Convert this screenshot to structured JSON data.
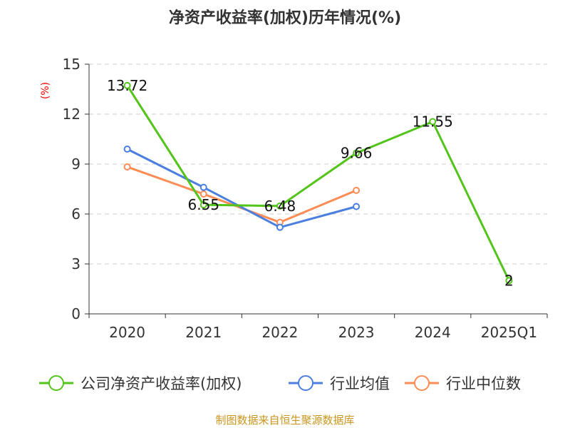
{
  "chart_data": {
    "type": "line",
    "title": "净资产收益率(加权)历年情况(%)",
    "ylabel": "(%)",
    "xlabel": "",
    "categories": [
      "2020",
      "2021",
      "2022",
      "2023",
      "2024",
      "2025Q1"
    ],
    "ylim": [
      0,
      15
    ],
    "yticks": [
      0,
      3,
      6,
      9,
      12,
      15
    ],
    "grid": true,
    "legend_position": "bottom",
    "series": [
      {
        "name": "公司净资产收益率(加权)",
        "color": "#52c41a",
        "values": [
          13.72,
          6.55,
          6.48,
          9.66,
          11.55,
          2
        ],
        "labels": [
          "13.72",
          "6.55",
          "6.48",
          "9.66",
          "11.55",
          "2"
        ]
      },
      {
        "name": "行业均值",
        "color": "#4a7fe0",
        "values": [
          9.9,
          7.6,
          5.2,
          6.45,
          null,
          null
        ]
      },
      {
        "name": "行业中位数",
        "color": "#ff8c55",
        "values": [
          8.83,
          7.2,
          5.5,
          7.42,
          null,
          null
        ]
      }
    ]
  },
  "source": "制图数据来自恒生聚源数据库"
}
